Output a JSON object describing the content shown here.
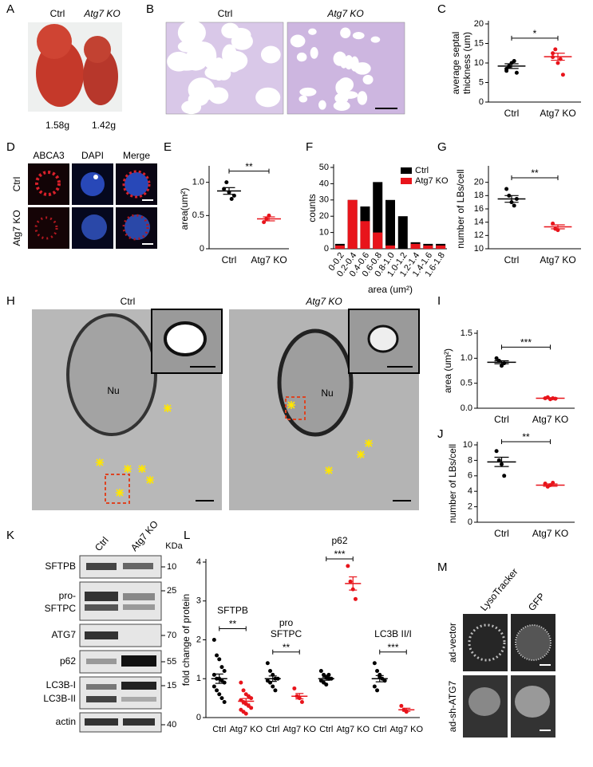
{
  "figure": {
    "panel_letters": [
      "A",
      "B",
      "C",
      "D",
      "E",
      "F",
      "G",
      "H",
      "I",
      "J",
      "K",
      "L",
      "M"
    ],
    "A": {
      "labels": [
        "Ctrl",
        "Atg7 KO"
      ],
      "weights": [
        "1.58g",
        "1.42g"
      ]
    },
    "B": {
      "labels": [
        "Ctrl",
        "Atg7 KO"
      ]
    },
    "D": {
      "columns": [
        "ABCA3",
        "DAPI",
        "Merge"
      ],
      "rows": [
        "Ctrl",
        "Atg7 KO"
      ]
    },
    "H": {
      "labels": [
        "Ctrl",
        "Atg7 KO"
      ],
      "nucleus": [
        "Nu",
        "Nu"
      ]
    },
    "K": {
      "columns": [
        "Ctrl",
        "Atg7 KO"
      ],
      "unit": "KDa",
      "rows": [
        [
          "SFTPB"
        ],
        [
          "pro-",
          "SFTPC"
        ],
        [
          "ATG7"
        ],
        [
          "p62"
        ],
        [
          "LC3B-I",
          "LC3B-II"
        ],
        [
          "actin"
        ]
      ],
      "markers": [
        "10",
        "25",
        "70",
        "55",
        "15",
        "40"
      ]
    },
    "M": {
      "columns": [
        "LysoTracker",
        "GFP"
      ],
      "rows": [
        "ad-vector",
        "ad-sh-ATG7"
      ]
    }
  },
  "chart_data": [
    {
      "type": "dot",
      "ylabel": [
        "average septal",
        "thickness (um)"
      ],
      "categories": [
        "Ctrl",
        "Atg7 KO"
      ],
      "colors": [
        "#000000",
        "#e8141b"
      ],
      "values": [
        [
          8,
          9,
          10,
          10.5,
          7.5,
          8.5,
          9.2
        ],
        [
          12.5,
          13.5,
          10,
          11,
          7,
          11.5
        ]
      ],
      "means": [
        9.2,
        11.6
      ],
      "errors": [
        0.6,
        0.9
      ],
      "significance": [
        "*"
      ],
      "ylim": [
        0,
        20
      ],
      "yticks": [
        0,
        5,
        10,
        15,
        20
      ]
    },
    {
      "type": "dot",
      "ylabel": "area(um²)",
      "categories": [
        "Ctrl",
        "Atg7 KO"
      ],
      "colors": [
        "#000000",
        "#e8141b"
      ],
      "values": [
        [
          0.9,
          1.0,
          0.85,
          0.75,
          0.8
        ],
        [
          0.4,
          0.45,
          0.5
        ]
      ],
      "means": [
        0.87,
        0.45
      ],
      "errors": [
        0.05,
        0.03
      ],
      "significance": [
        "**"
      ],
      "ylim": [
        0,
        1.2
      ],
      "yticks": [
        0,
        0.5,
        {
          "value": 1,
          "label": "1.0"
        }
      ]
    },
    {
      "type": "bar",
      "ylabel": "counts",
      "xlabel": "area (um²)",
      "categories": [
        "0-0.2",
        "0.2-0.4",
        "0.4-0.6",
        "0.6-0.8",
        "0.8-1.0",
        "1.0-1.2",
        "1.2-1.4",
        "1.4-1.6",
        "1.6-1.8"
      ],
      "series": [
        {
          "name": "Ctrl",
          "color": "#000000",
          "values": [
            3,
            30,
            26,
            41,
            30,
            20,
            4,
            3,
            3
          ]
        },
        {
          "name": "Atg7 KO",
          "color": "#e8141b",
          "values": [
            2,
            30,
            17,
            10,
            2,
            0,
            3,
            2,
            2
          ]
        }
      ],
      "legend": "top-right",
      "ylim": [
        0,
        50
      ],
      "yticks": [
        0,
        10,
        20,
        30,
        40,
        50
      ]
    },
    {
      "type": "dot",
      "ylabel": "number of LBs/cell",
      "categories": [
        "Ctrl",
        "Atg7 KO"
      ],
      "colors": [
        "#000000",
        "#e8141b"
      ],
      "values": [
        [
          19,
          18,
          17,
          16.5,
          17.5
        ],
        [
          13.8,
          13,
          12.8
        ]
      ],
      "means": [
        17.5,
        13.3
      ],
      "errors": [
        0.5,
        0.3
      ],
      "significance": [
        "**"
      ],
      "ylim": [
        10,
        22
      ],
      "yticks": [
        10,
        12,
        14,
        16,
        18,
        20
      ]
    },
    {
      "type": "dot",
      "ylabel": "area (um²)",
      "categories": [
        "Ctrl",
        "Atg7 KO"
      ],
      "colors": [
        "#000000",
        "#e8141b"
      ],
      "values": [
        [
          1.0,
          0.95,
          0.85,
          0.9
        ],
        [
          0.2,
          0.22,
          0.18,
          0.2,
          0.19
        ]
      ],
      "means": [
        0.92,
        0.2
      ],
      "errors": [
        0.03,
        0.01
      ],
      "significance": [
        "***"
      ],
      "ylim": [
        0,
        1.5
      ],
      "yticks": [
        {
          "value": 0,
          "label": "0.0"
        },
        0.5,
        {
          "value": 1,
          "label": "1.0"
        },
        1.5
      ]
    },
    {
      "type": "dot",
      "ylabel": "number of LBs/cell",
      "categories": [
        "Ctrl",
        "Atg7 KO"
      ],
      "colors": [
        "#000000",
        "#e8141b"
      ],
      "values": [
        [
          9.2,
          8,
          7.5,
          6
        ],
        [
          5,
          4.6,
          4.8,
          5.1
        ]
      ],
      "means": [
        7.8,
        4.8
      ],
      "errors": [
        0.6,
        0.15
      ],
      "significance": [
        "**"
      ],
      "ylim": [
        0,
        10
      ],
      "yticks": [
        0,
        2,
        4,
        6,
        8,
        10
      ]
    },
    {
      "type": "dot",
      "ylabel": "fold change of protein",
      "categories": [
        "Ctrl",
        "Atg7 KO",
        "Ctrl",
        "Atg7 KO",
        "Ctrl",
        "Atg7 KO",
        "Ctrl",
        "Atg7 KO"
      ],
      "colors": [
        "#000000",
        "#e8141b",
        "#000000",
        "#e8141b",
        "#000000",
        "#e8141b",
        "#000000",
        "#e8141b"
      ],
      "group_labels": [
        [
          "SFTPB"
        ],
        [
          "pro",
          "SFTPC"
        ],
        [
          "p62"
        ],
        [
          "LC3B II/I"
        ]
      ],
      "values": [
        [
          2.0,
          1.6,
          1.5,
          1.3,
          1.2,
          1.1,
          1.0,
          1.0,
          0.95,
          0.9,
          0.8,
          0.7,
          0.6,
          0.5,
          0.4
        ],
        [
          0.9,
          0.7,
          0.6,
          0.55,
          0.5,
          0.45,
          0.4,
          0.35,
          0.3,
          0.25,
          0.2,
          0.15,
          0.1
        ],
        [
          1.4,
          1.2,
          1.1,
          1.0,
          1.0,
          0.95,
          0.9,
          0.8,
          0.7
        ],
        [
          0.75,
          0.55,
          0.5,
          0.4
        ],
        [
          1.2,
          1.1,
          1.05,
          1.0,
          1.0,
          0.95,
          0.9,
          0.85,
          1.1
        ],
        [
          3.9,
          3.5,
          3.3,
          3.05
        ],
        [
          1.4,
          1.2,
          1.05,
          1.0,
          0.95,
          0.8,
          0.7,
          1.1
        ],
        [
          0.3,
          0.2,
          0.15
        ]
      ],
      "means": [
        1.0,
        0.42,
        1.0,
        0.55,
        1.0,
        3.45,
        1.0,
        0.2
      ],
      "errors": [
        0.12,
        0.07,
        0.07,
        0.07,
        0.04,
        0.17,
        0.08,
        0.04
      ],
      "significance": [
        "**",
        "**",
        "***",
        "***"
      ],
      "ylim": [
        0,
        4
      ],
      "yticks": [
        0,
        1,
        2,
        3,
        4
      ]
    }
  ]
}
